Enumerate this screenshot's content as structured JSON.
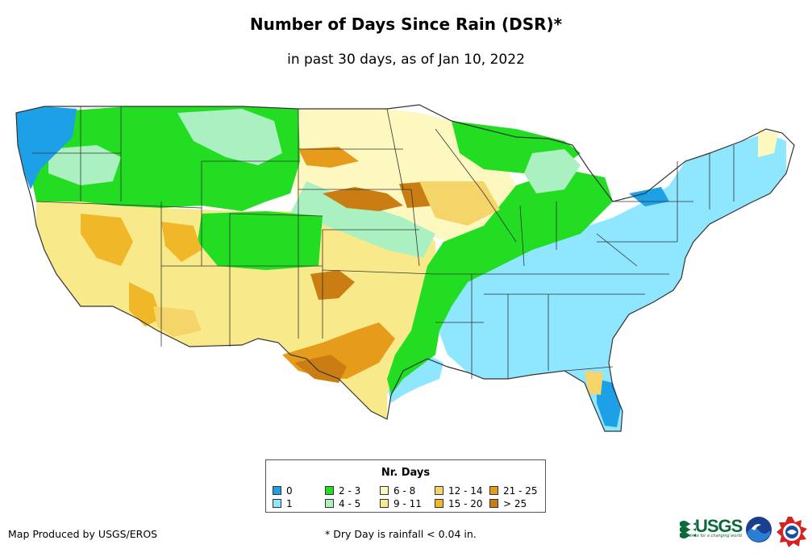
{
  "title": "Number of Days Since Rain (DSR)*",
  "subtitle": "in past 30 days, as of Jan 10, 2022",
  "legend": {
    "title": "Nr. Days",
    "items": [
      {
        "label": "0",
        "color": "#1ea0e6"
      },
      {
        "label": "1",
        "color": "#8fe6ff"
      },
      {
        "label": "2 - 3",
        "color": "#22dd22"
      },
      {
        "label": "4 - 5",
        "color": "#aaf0c0"
      },
      {
        "label": "6 - 8",
        "color": "#fdf7c0"
      },
      {
        "label": "9 - 11",
        "color": "#f8ea8a"
      },
      {
        "label": "12 - 14",
        "color": "#f5d56a"
      },
      {
        "label": "15 - 20",
        "color": "#f0b828"
      },
      {
        "label": "21 - 25",
        "color": "#e69b1a"
      },
      {
        "label": "> 25",
        "color": "#c97d12"
      }
    ]
  },
  "footer": {
    "credit": "Map Produced by USGS/EROS",
    "note": "* Dry Day is rainfall < 0.04 in."
  },
  "logos": {
    "usgs": "USGS",
    "usgs_tagline": "science for a changing world"
  }
}
